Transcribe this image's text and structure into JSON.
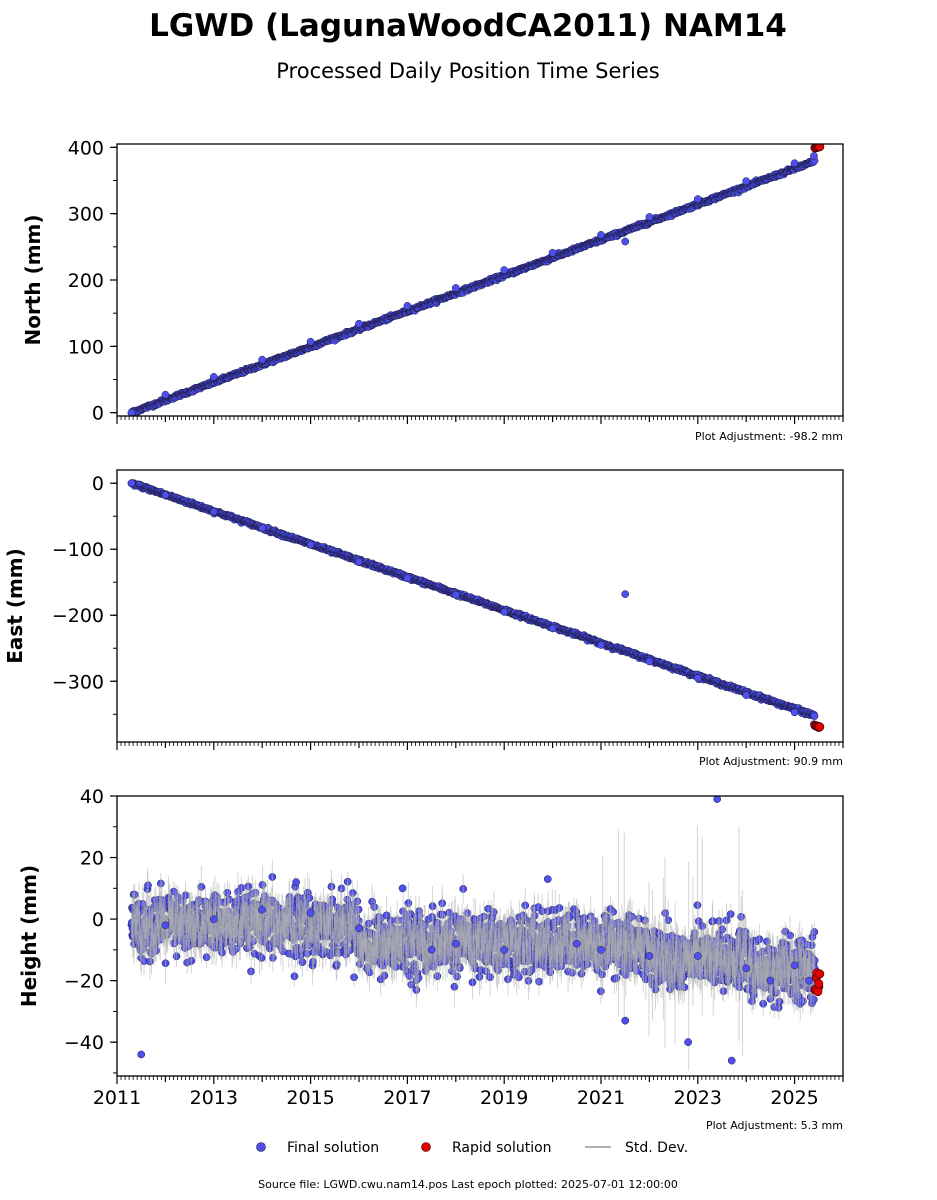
{
  "title": "LGWD (LagunaWoodCA2011) NAM14",
  "subtitle": "Processed Daily Position Time Series",
  "colors": {
    "final": "#4f4fef",
    "rapid": "#e00000",
    "std": "#b0b0b0",
    "marker_edge": "#1a1a40"
  },
  "legend": {
    "placement": "bottom-center",
    "items": [
      "Final solution",
      "Rapid solution",
      "Std. Dev."
    ]
  },
  "footer": "Source file: LGWD.cwu.nam14.pos  Last epoch plotted: 2025-07-01 12:00:00",
  "chart_data": [
    {
      "type": "scatter",
      "ylabel": "North (mm)",
      "adjustment_text": "Plot Adjustment: -98.2 mm",
      "xlim": [
        2011.0,
        2026.0
      ],
      "ylim": [
        -5,
        405
      ],
      "yticks": [
        0,
        100,
        200,
        300,
        400
      ],
      "ytick_labels": [
        "0",
        "100",
        "200",
        "300",
        "400"
      ],
      "series": [
        {
          "name": "Final solution",
          "x": [
            2011.3,
            2012.0,
            2013.0,
            2014.0,
            2015.0,
            2016.0,
            2017.0,
            2018.0,
            2019.0,
            2020.0,
            2021.0,
            2021.5,
            2022.0,
            2023.0,
            2024.0,
            2025.0,
            2025.4
          ],
          "y": [
            0,
            27,
            54,
            80,
            107,
            134,
            161,
            188,
            215,
            241,
            268,
            258,
            295,
            322,
            349,
            376,
            387
          ]
        },
        {
          "name": "Rapid solution",
          "x": [
            2025.45,
            2025.5
          ],
          "y": [
            400,
            401
          ]
        }
      ]
    },
    {
      "type": "scatter",
      "ylabel": "East (mm)",
      "adjustment_text": "Plot Adjustment: 90.9 mm",
      "xlim": [
        2011.0,
        2026.0
      ],
      "ylim": [
        -392,
        20
      ],
      "yticks": [
        0,
        -100,
        -200,
        -300
      ],
      "ytick_labels": [
        "0",
        "−100",
        "−200",
        "−300"
      ],
      "series": [
        {
          "name": "Final solution",
          "x": [
            2011.3,
            2012.0,
            2013.0,
            2014.0,
            2015.0,
            2016.0,
            2017.0,
            2018.0,
            2019.0,
            2020.0,
            2021.0,
            2021.5,
            2022.0,
            2023.0,
            2024.0,
            2025.0,
            2025.4
          ],
          "y": [
            0,
            -18,
            -43,
            -68,
            -93,
            -119,
            -144,
            -169,
            -195,
            -220,
            -245,
            -168,
            -270,
            -295,
            -321,
            -347,
            -365
          ]
        },
        {
          "name": "Rapid solution",
          "x": [
            2025.45,
            2025.5
          ],
          "y": [
            -368,
            -370
          ]
        }
      ]
    },
    {
      "type": "scatter",
      "ylabel": "Height (mm)",
      "adjustment_text": "Plot Adjustment: 5.3 mm",
      "xlim": [
        2011.0,
        2026.0
      ],
      "ylim": [
        -51,
        40
      ],
      "yticks": [
        40,
        20,
        0,
        -20,
        -40
      ],
      "ytick_labels": [
        "40",
        "20",
        "0",
        "−20",
        "−40"
      ],
      "xticks": [
        2011,
        2013,
        2015,
        2017,
        2019,
        2021,
        2023,
        2025
      ],
      "xtick_labels": [
        "2011",
        "2013",
        "2015",
        "2017",
        "2019",
        "2021",
        "2023",
        "2025"
      ],
      "series": [
        {
          "name": "Final solution",
          "x": [
            2011.5,
            2012.0,
            2013.0,
            2014.0,
            2014.7,
            2015.0,
            2016.0,
            2016.9,
            2017.5,
            2018.0,
            2019.0,
            2019.9,
            2020.5,
            2021.0,
            2021.5,
            2022.0,
            2022.8,
            2023.0,
            2023.4,
            2023.7,
            2024.0,
            2024.5,
            2025.0,
            2025.3
          ],
          "y": [
            -44,
            -2,
            0,
            3,
            12,
            2,
            -3,
            10,
            -10,
            -8,
            -10,
            13,
            -8,
            -10,
            -33,
            -12,
            -40,
            -12,
            39,
            -46,
            -16,
            -20,
            -15,
            -20
          ]
        },
        {
          "name": "Rapid solution",
          "x": [
            2025.45,
            2025.5
          ],
          "y": [
            -19,
            -22
          ]
        }
      ]
    }
  ]
}
